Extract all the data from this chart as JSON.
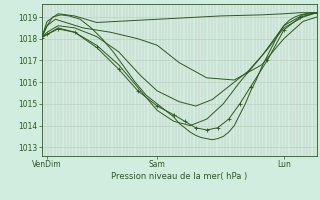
{
  "title": "Pression niveau de la mer( hPa )",
  "bg_color": "#d0ede0",
  "line_color": "#2d5a1b",
  "grid_color_v": "#c8b8b8",
  "grid_color_h": "#b8ccb8",
  "ylim": [
    1012.6,
    1019.6
  ],
  "yticks": [
    1013,
    1014,
    1015,
    1016,
    1017,
    1018,
    1019
  ],
  "xtick_labels": [
    "VenDim",
    "Sam",
    "Lun"
  ],
  "xtick_pos": [
    0.02,
    0.42,
    0.88
  ],
  "series": [
    {
      "x": [
        0.0,
        0.02,
        0.06,
        0.12,
        0.2,
        0.35,
        0.5,
        0.65,
        0.8,
        0.88,
        0.94,
        1.0
      ],
      "y": [
        1018.05,
        1018.8,
        1019.15,
        1019.05,
        1018.75,
        1018.85,
        1018.95,
        1019.05,
        1019.1,
        1019.15,
        1019.2,
        1019.2
      ]
    },
    {
      "x": [
        0.0,
        0.02,
        0.05,
        0.1,
        0.15,
        0.25,
        0.35,
        0.42,
        0.5,
        0.6,
        0.7,
        0.8,
        0.88,
        0.95,
        1.0
      ],
      "y": [
        1018.05,
        1018.6,
        1018.9,
        1018.7,
        1018.5,
        1018.3,
        1018.0,
        1017.7,
        1016.9,
        1016.2,
        1016.1,
        1016.8,
        1018.0,
        1018.8,
        1019.0
      ]
    },
    {
      "x": [
        0.0,
        0.02,
        0.06,
        0.12,
        0.2,
        0.28,
        0.36,
        0.42,
        0.5,
        0.56,
        0.62,
        0.68,
        0.75,
        0.82,
        0.88,
        0.95,
        1.0
      ],
      "y": [
        1018.05,
        1018.3,
        1018.6,
        1018.5,
        1018.1,
        1017.4,
        1016.3,
        1015.6,
        1015.1,
        1014.9,
        1015.2,
        1015.8,
        1016.5,
        1017.5,
        1018.5,
        1019.0,
        1019.2
      ]
    },
    {
      "x": [
        0.0,
        0.02,
        0.06,
        0.12,
        0.2,
        0.28,
        0.36,
        0.42,
        0.48,
        0.54,
        0.6,
        0.66,
        0.72,
        0.8,
        0.88,
        0.95,
        1.0
      ],
      "y": [
        1018.05,
        1018.2,
        1018.5,
        1018.3,
        1017.7,
        1016.8,
        1015.6,
        1014.7,
        1014.2,
        1014.0,
        1014.3,
        1015.0,
        1016.0,
        1017.2,
        1018.6,
        1019.1,
        1019.2
      ]
    },
    {
      "x": [
        0.0,
        0.02,
        0.04,
        0.07,
        0.1,
        0.14,
        0.18,
        0.22,
        0.26,
        0.3,
        0.34,
        0.38,
        0.42,
        0.45,
        0.48,
        0.5,
        0.52,
        0.54,
        0.56,
        0.58,
        0.6,
        0.62,
        0.64,
        0.66,
        0.68,
        0.7,
        0.72,
        0.74,
        0.76,
        0.78,
        0.8,
        0.82,
        0.84,
        0.86,
        0.88,
        0.9,
        0.92,
        0.94,
        0.96,
        0.98,
        1.0
      ],
      "y": [
        1018.05,
        1018.6,
        1019.0,
        1019.1,
        1019.05,
        1018.9,
        1018.5,
        1018.0,
        1017.4,
        1016.7,
        1016.0,
        1015.4,
        1015.0,
        1014.7,
        1014.4,
        1014.1,
        1013.9,
        1013.7,
        1013.55,
        1013.45,
        1013.4,
        1013.35,
        1013.4,
        1013.5,
        1013.7,
        1014.0,
        1014.5,
        1015.0,
        1015.6,
        1016.1,
        1016.7,
        1017.2,
        1017.7,
        1018.2,
        1018.6,
        1018.85,
        1019.0,
        1019.1,
        1019.15,
        1019.2,
        1019.2
      ]
    },
    {
      "x": [
        0.0,
        0.02,
        0.06,
        0.12,
        0.2,
        0.28,
        0.35,
        0.42,
        0.48,
        0.52,
        0.56,
        0.6,
        0.64,
        0.68,
        0.72,
        0.76,
        0.82,
        0.88,
        0.94,
        1.0
      ],
      "y": [
        1018.05,
        1018.2,
        1018.45,
        1018.3,
        1017.6,
        1016.6,
        1015.6,
        1014.9,
        1014.5,
        1014.2,
        1013.9,
        1013.8,
        1013.9,
        1014.3,
        1015.0,
        1015.8,
        1017.0,
        1018.4,
        1019.0,
        1019.2
      ]
    }
  ]
}
